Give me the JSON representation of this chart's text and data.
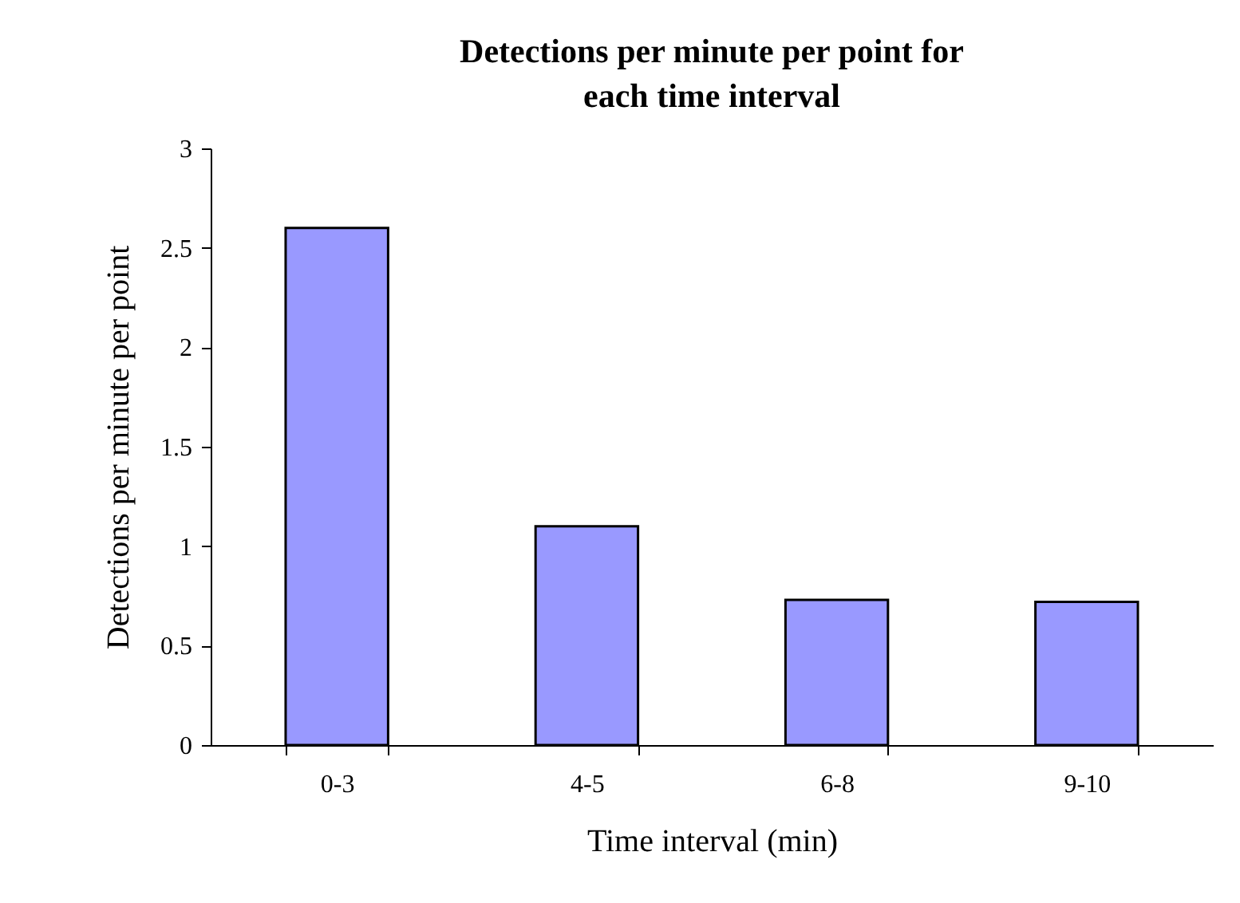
{
  "chart_data": {
    "type": "bar",
    "title": "Detections per minute per point for each time interval",
    "xlabel": "Time interval (min)",
    "ylabel": "Detections per minute per point",
    "categories": [
      "0-3",
      "4-5",
      "6-8",
      "9-10"
    ],
    "values": [
      2.6,
      1.1,
      0.73,
      0.72
    ],
    "color": "#9999ff",
    "ylim": [
      0,
      3
    ],
    "yticks": [
      0,
      0.5,
      1,
      1.5,
      2,
      2.5,
      3
    ],
    "grid": false
  }
}
